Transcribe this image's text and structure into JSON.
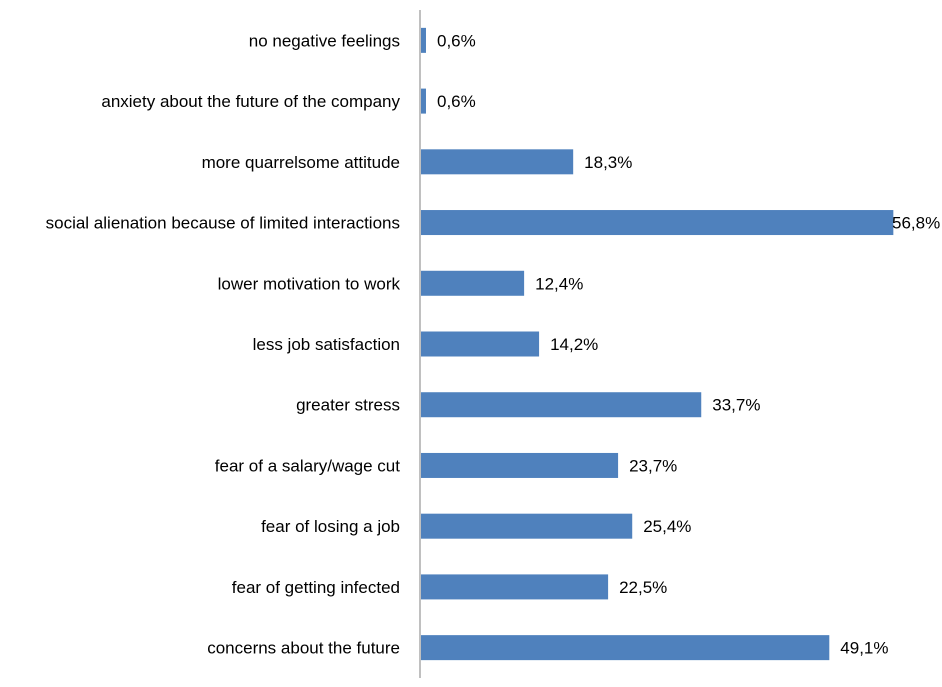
{
  "chart_data": {
    "type": "bar",
    "orientation": "horizontal",
    "categories": [
      "no negative feelings",
      "anxiety about the future of the company",
      "more quarrelsome attitude",
      "social alienation because of limited interactions",
      "lower motivation to work",
      "less job satisfaction",
      "greater stress",
      "fear of a salary/wage cut",
      "fear of losing a job",
      "fear of getting infected",
      "concerns about the future"
    ],
    "values": [
      0.6,
      0.6,
      18.3,
      56.8,
      12.4,
      14.2,
      33.7,
      23.7,
      25.4,
      22.5,
      49.1
    ],
    "value_labels": [
      "0,6%",
      "0,6%",
      "18,3%",
      "56,8%",
      "12,4%",
      "14,2%",
      "33,7%",
      "23,7%",
      "25,4%",
      "22,5%",
      "49,1%"
    ],
    "xlim": [
      0,
      57
    ],
    "grid": false,
    "legend": "none",
    "bar_color": "#4f81bd"
  }
}
